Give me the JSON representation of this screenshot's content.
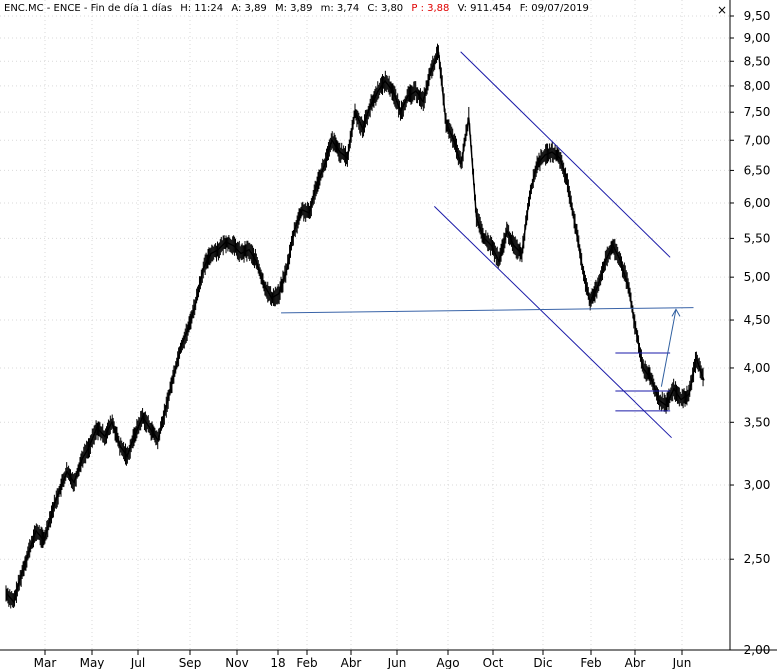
{
  "header": {
    "symbol": "ENC.MC - ENCE - Fin de día 1 días",
    "H": "H: 11:24",
    "A": "A: 3,89",
    "M": "M: 3,89",
    "m": "m: 3,74",
    "C": "C: 3,80",
    "P": "P : 3,88",
    "V": "V: 911.454",
    "F": "F: 09/07/2019",
    "close_icon": "close-x-icon"
  },
  "colors": {
    "price": "#000000",
    "trendline": "#1a1aa8",
    "support": "#3a64a8",
    "target_arrow": "#2f5fa0",
    "highlight": "#e00000",
    "grid": "#d9d9d9"
  },
  "chart_data": {
    "type": "line",
    "scale": "log",
    "ylim": [
      2.0,
      9.5
    ],
    "y_ticks": [
      "9,50",
      "9,00",
      "8,50",
      "8,00",
      "7,50",
      "7,00",
      "6,50",
      "6,00",
      "5,50",
      "5,00",
      "4,50",
      "4,00",
      "3,50",
      "3,00",
      "2,50",
      "2,00"
    ],
    "x_ticks": [
      "Mar",
      "May",
      "Jul",
      "Sep",
      "Nov",
      "18",
      "Feb",
      "Abr",
      "Jun",
      "Ago",
      "Oct",
      "Dic",
      "Feb",
      "Abr",
      "Jun"
    ],
    "grid": true,
    "series": [
      {
        "values": [
          2.3,
          2.25,
          2.4,
          2.55,
          2.68,
          2.62,
          2.8,
          2.95,
          3.1,
          3.02,
          3.2,
          3.3,
          3.45,
          3.38,
          3.5,
          3.3,
          3.22,
          3.4,
          3.55,
          3.45,
          3.35,
          3.6,
          3.9,
          4.2,
          4.4,
          4.7,
          5.1,
          5.3,
          5.35,
          5.45,
          5.4,
          5.3,
          5.35,
          5.2,
          4.9,
          4.75,
          4.8,
          5.1,
          5.6,
          5.9,
          5.85,
          6.3,
          6.6,
          7.0,
          6.8,
          6.7,
          7.5,
          7.2,
          7.6,
          7.9,
          8.1,
          7.9,
          7.5,
          7.8,
          7.9,
          7.7,
          8.3,
          8.7,
          7.3,
          7.0,
          6.6,
          7.4,
          5.8,
          5.5,
          5.4,
          5.2,
          5.6,
          5.4,
          5.3,
          6.1,
          6.6,
          6.75,
          6.8,
          6.7,
          6.3,
          5.7,
          5.1,
          4.7,
          4.9,
          5.2,
          5.4,
          5.2,
          4.9,
          4.4,
          4.0,
          3.9,
          3.7,
          3.65,
          3.8,
          3.7,
          3.75,
          4.1,
          3.88
        ]
      }
    ],
    "trendlines": [
      {
        "kind": "upper-channel",
        "x": [
          0.631,
          0.918
        ],
        "y": [
          8.7,
          5.25
        ]
      },
      {
        "kind": "lower-channel",
        "x": [
          0.595,
          0.92
        ],
        "y": [
          5.95,
          3.37
        ]
      },
      {
        "kind": "support",
        "x": [
          0.385,
          0.95
        ],
        "y": [
          4.58,
          4.64
        ]
      },
      {
        "kind": "range-top",
        "x": [
          0.843,
          0.918
        ],
        "y": [
          4.15,
          4.15
        ]
      },
      {
        "kind": "range-bottom",
        "x": [
          0.843,
          0.918
        ],
        "y": [
          3.6,
          3.6
        ]
      },
      {
        "kind": "range-mid",
        "x": [
          0.843,
          0.918
        ],
        "y": [
          3.78,
          3.78
        ]
      },
      {
        "kind": "range-arrow",
        "x": [
          0.906,
          0.926
        ],
        "y": [
          3.82,
          4.62
        ]
      }
    ]
  }
}
